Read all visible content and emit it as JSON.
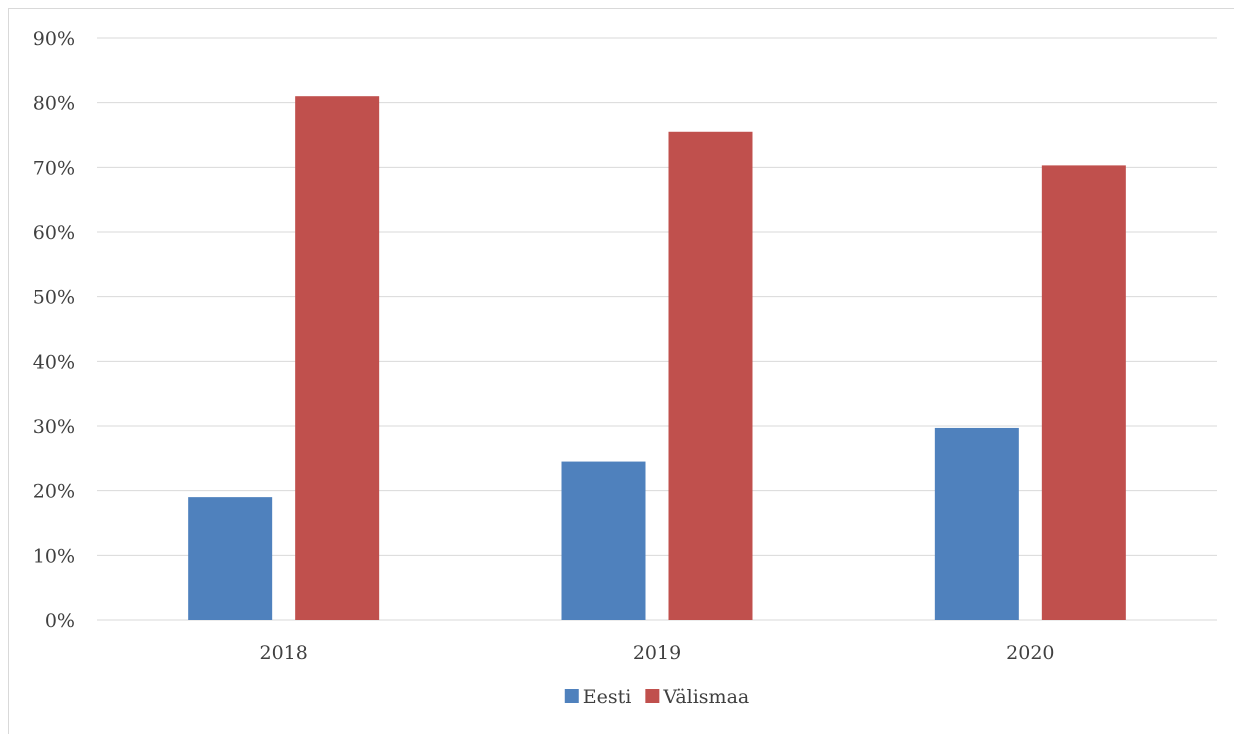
{
  "chart_data": {
    "type": "bar",
    "title": "",
    "xlabel": "",
    "ylabel": "",
    "categories": [
      "2018",
      "2019",
      "2020"
    ],
    "series": [
      {
        "name": "Eesti",
        "color": "#4f81bd",
        "values": [
          0.19,
          0.245,
          0.297
        ]
      },
      {
        "name": "Välismaa",
        "color": "#c0504d",
        "values": [
          0.81,
          0.755,
          0.703
        ]
      }
    ],
    "ylim": [
      0,
      0.9
    ],
    "yticks": [
      0,
      0.1,
      0.2,
      0.3,
      0.4,
      0.5,
      0.6,
      0.7,
      0.8,
      0.9
    ],
    "ytick_labels": [
      "0%",
      "10%",
      "20%",
      "30%",
      "40%",
      "50%",
      "60%",
      "70%",
      "80%",
      "90%"
    ],
    "grid": true,
    "legend": "bottom-center"
  }
}
